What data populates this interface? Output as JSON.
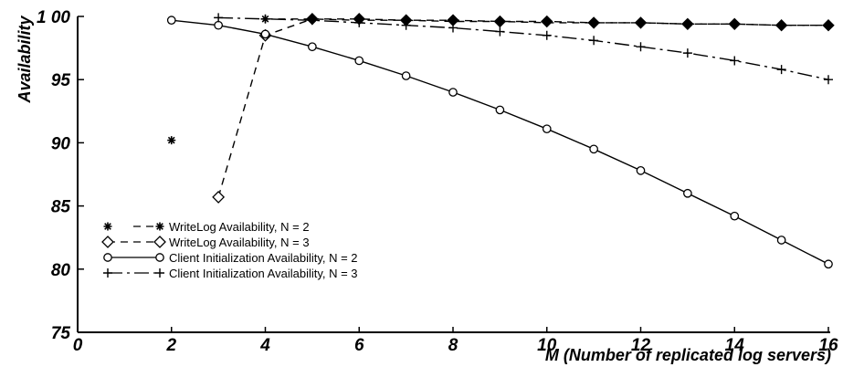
{
  "chart_data": {
    "type": "line",
    "xlabel": "M (Number of replicated log servers)",
    "ylabel": "Availability",
    "xlim": [
      0,
      16
    ],
    "ylim": [
      75,
      100
    ],
    "x_ticks": [
      "0",
      "2",
      "4",
      "6",
      "8",
      "10",
      "12",
      "14",
      "16"
    ],
    "y_ticks": [
      "75",
      "80",
      "85",
      "90",
      "95",
      "1 00"
    ],
    "grid": false,
    "legend_position": "lower-left",
    "series": [
      {
        "name": "WriteLog Availability, N = 2",
        "marker": "asterisk",
        "line": "dashed",
        "points": [
          [
            2,
            90.2
          ],
          [
            4,
            99.8
          ],
          [
            5,
            99.8
          ],
          [
            6,
            99.7
          ],
          [
            7,
            99.7
          ],
          [
            8,
            99.6
          ],
          [
            9,
            99.6
          ],
          [
            10,
            99.5
          ],
          [
            11,
            99.5
          ],
          [
            12,
            99.5
          ],
          [
            13,
            99.4
          ],
          [
            14,
            99.4
          ],
          [
            15,
            99.3
          ],
          [
            16,
            99.3
          ]
        ]
      },
      {
        "name": "WriteLog Availability, N = 3",
        "marker": "diamond",
        "line": "dashed",
        "points": [
          [
            3,
            85.7
          ],
          [
            4,
            98.5
          ],
          [
            5,
            99.8
          ],
          [
            6,
            99.8
          ],
          [
            7,
            99.7
          ],
          [
            8,
            99.7
          ],
          [
            9,
            99.6
          ],
          [
            10,
            99.6
          ],
          [
            11,
            99.5
          ],
          [
            12,
            99.5
          ],
          [
            13,
            99.4
          ],
          [
            14,
            99.4
          ],
          [
            15,
            99.3
          ],
          [
            16,
            99.3
          ]
        ]
      },
      {
        "name": "Client Initialization Availability, N = 2",
        "marker": "circle",
        "line": "solid",
        "points": [
          [
            2,
            99.7
          ],
          [
            3,
            99.3
          ],
          [
            4,
            98.6
          ],
          [
            5,
            97.6
          ],
          [
            6,
            96.5
          ],
          [
            7,
            95.3
          ],
          [
            8,
            94.0
          ],
          [
            9,
            92.6
          ],
          [
            10,
            91.1
          ],
          [
            11,
            89.5
          ],
          [
            12,
            87.8
          ],
          [
            13,
            86.0
          ],
          [
            14,
            84.2
          ],
          [
            15,
            82.3
          ],
          [
            16,
            80.4
          ]
        ]
      },
      {
        "name": "Client Initialization Availability, N = 3",
        "marker": "plus",
        "line": "dashdot",
        "points": [
          [
            3,
            99.9
          ],
          [
            4,
            99.8
          ],
          [
            5,
            99.7
          ],
          [
            6,
            99.5
          ],
          [
            7,
            99.3
          ],
          [
            8,
            99.1
          ],
          [
            9,
            98.8
          ],
          [
            10,
            98.5
          ],
          [
            11,
            98.1
          ],
          [
            12,
            97.6
          ],
          [
            13,
            97.1
          ],
          [
            14,
            96.5
          ],
          [
            15,
            95.8
          ],
          [
            16,
            95.0
          ]
        ]
      }
    ]
  }
}
